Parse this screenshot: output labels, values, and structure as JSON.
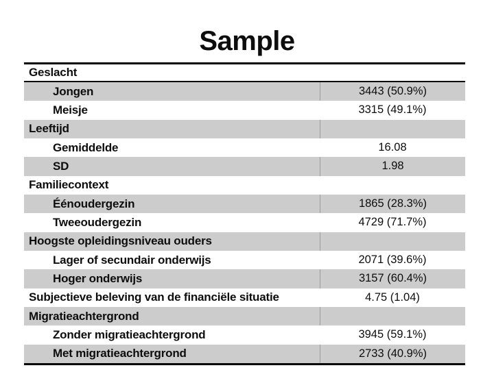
{
  "title": "Sample",
  "table": {
    "rows": [
      {
        "label": "Geslacht",
        "value": "",
        "level": 1,
        "header": true,
        "shaded": false
      },
      {
        "label": "Jongen",
        "value": "3443 (50.9%)",
        "level": 2,
        "header": false,
        "shaded": true
      },
      {
        "label": "Meisje",
        "value": "3315 (49.1%)",
        "level": 2,
        "header": false,
        "shaded": false
      },
      {
        "label": "Leeftijd",
        "value": "",
        "level": 1,
        "header": false,
        "shaded": true
      },
      {
        "label": "Gemiddelde",
        "value": "16.08",
        "level": 2,
        "header": false,
        "shaded": false
      },
      {
        "label": "SD",
        "value": "1.98",
        "level": 2,
        "header": false,
        "shaded": true
      },
      {
        "label": "Familiecontext",
        "value": "",
        "level": 1,
        "header": false,
        "shaded": false
      },
      {
        "label": "Éénoudergezin",
        "value": "1865 (28.3%)",
        "level": 2,
        "header": false,
        "shaded": true
      },
      {
        "label": "Tweeoudergezin",
        "value": "4729 (71.7%)",
        "level": 2,
        "header": false,
        "shaded": false
      },
      {
        "label": "Hoogste opleidingsniveau ouders",
        "value": "",
        "level": 1,
        "header": false,
        "shaded": true
      },
      {
        "label": "Lager of secundair onderwijs",
        "value": "2071 (39.6%)",
        "level": 2,
        "header": false,
        "shaded": false
      },
      {
        "label": "Hoger onderwijs",
        "value": "3157 (60.4%)",
        "level": 2,
        "header": false,
        "shaded": true
      },
      {
        "label": "Subjectieve beleving van de financiële situatie",
        "value": "4.75 (1.04)",
        "level": 1,
        "header": false,
        "shaded": false
      },
      {
        "label": "Migratieachtergrond",
        "value": "",
        "level": 1,
        "header": false,
        "shaded": true
      },
      {
        "label": "Zonder migratieachtergrond",
        "value": "3945 (59.1%)",
        "level": 2,
        "header": false,
        "shaded": false
      },
      {
        "label": "Met migratieachtergrond",
        "value": "2733 (40.9%)",
        "level": 2,
        "header": false,
        "shaded": true
      }
    ]
  },
  "colors": {
    "shaded_row": "#cccccc",
    "column_divider": "#9c9c9c",
    "rule_line": "#000000",
    "text": "#0d0d0d",
    "background": "#ffffff"
  }
}
